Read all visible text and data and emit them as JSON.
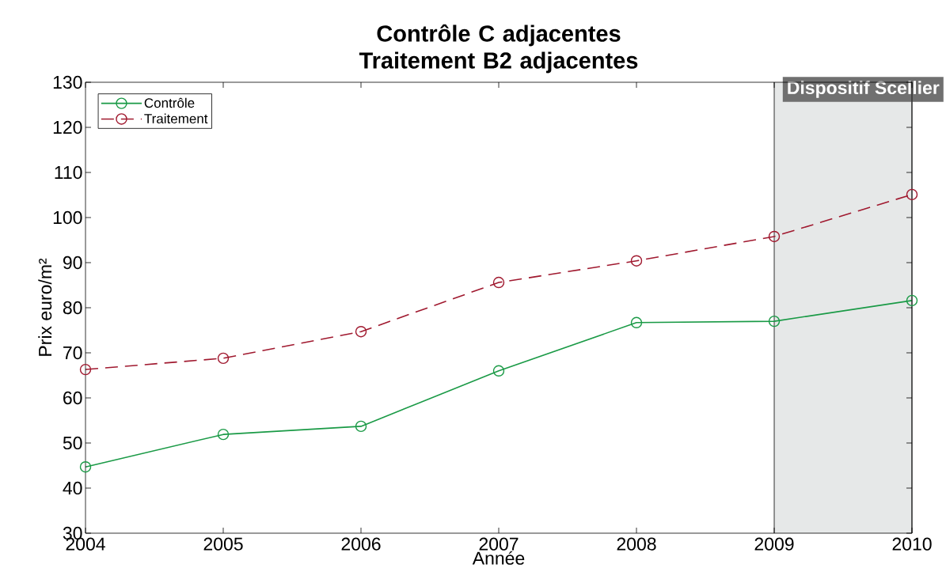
{
  "chart_data": {
    "type": "line",
    "title": "Contrôle C adjacentes Traitement B2 adjacentes",
    "xlabel": "Année",
    "ylabel": "Prix euro/m²",
    "x": [
      2004,
      2005,
      2006,
      2007,
      2008,
      2009,
      2010
    ],
    "series": [
      {
        "name": "Contrôle",
        "color": "#1a9a46",
        "line_style": "solid",
        "values": [
          44.7,
          51.9,
          53.7,
          66.0,
          76.7,
          77.0,
          81.6
        ]
      },
      {
        "name": "Traitement",
        "color": "#a0192f",
        "line_style": "dashed",
        "values": [
          66.3,
          68.8,
          74.7,
          85.6,
          90.4,
          95.8,
          105.1
        ]
      }
    ],
    "xlim": [
      2004,
      2010
    ],
    "xticks": [
      2004,
      2005,
      2006,
      2007,
      2008,
      2009,
      2010
    ],
    "ylim": [
      30,
      130
    ],
    "yticks": [
      30,
      40,
      50,
      60,
      70,
      80,
      90,
      100,
      110,
      120,
      130
    ],
    "bands": [
      {
        "axis": "x",
        "from": 2009,
        "to": 2010,
        "label": "Dispositif Scellier",
        "color": "#e6e8e8"
      }
    ],
    "legend": "top left",
    "marker": "circle"
  }
}
